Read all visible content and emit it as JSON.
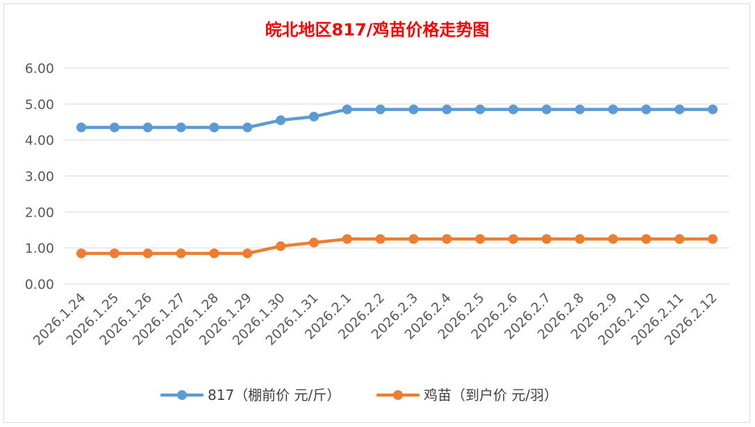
{
  "chart_data": {
    "type": "line",
    "title": "皖北地区817/鸡苗价格走势图",
    "title_color": "#ff0000",
    "xlabel": "",
    "ylabel": "",
    "ylim": [
      0,
      6
    ],
    "yticks": [
      "0.00",
      "1.00",
      "2.00",
      "3.00",
      "4.00",
      "5.00",
      "6.00"
    ],
    "grid": true,
    "legend": "bottom",
    "categories": [
      "2026.1.24",
      "2026.1.25",
      "2026.1.26",
      "2026.1.27",
      "2026.1.28",
      "2026.1.29",
      "2026.1.30",
      "2026.1.31",
      "2026.2.1",
      "2026.2.2",
      "2026.2.3",
      "2026.2.4",
      "2026.2.5",
      "2026.2.6",
      "2026.2.7",
      "2026.2.8",
      "2026.2.9",
      "2026.2.10",
      "2026.2.11",
      "2026.2.12"
    ],
    "series": [
      {
        "name": "817（棚前价 元/斤）",
        "color": "#5b9bd5",
        "values": [
          4.35,
          4.35,
          4.35,
          4.35,
          4.35,
          4.35,
          4.55,
          4.65,
          4.85,
          4.85,
          4.85,
          4.85,
          4.85,
          4.85,
          4.85,
          4.85,
          4.85,
          4.85,
          4.85,
          4.85
        ]
      },
      {
        "name": "鸡苗（到户价 元/羽）",
        "color": "#ed7d31",
        "values": [
          0.85,
          0.85,
          0.85,
          0.85,
          0.85,
          0.85,
          1.05,
          1.15,
          1.25,
          1.25,
          1.25,
          1.25,
          1.25,
          1.25,
          1.25,
          1.25,
          1.25,
          1.25,
          1.25,
          1.25
        ]
      }
    ]
  }
}
